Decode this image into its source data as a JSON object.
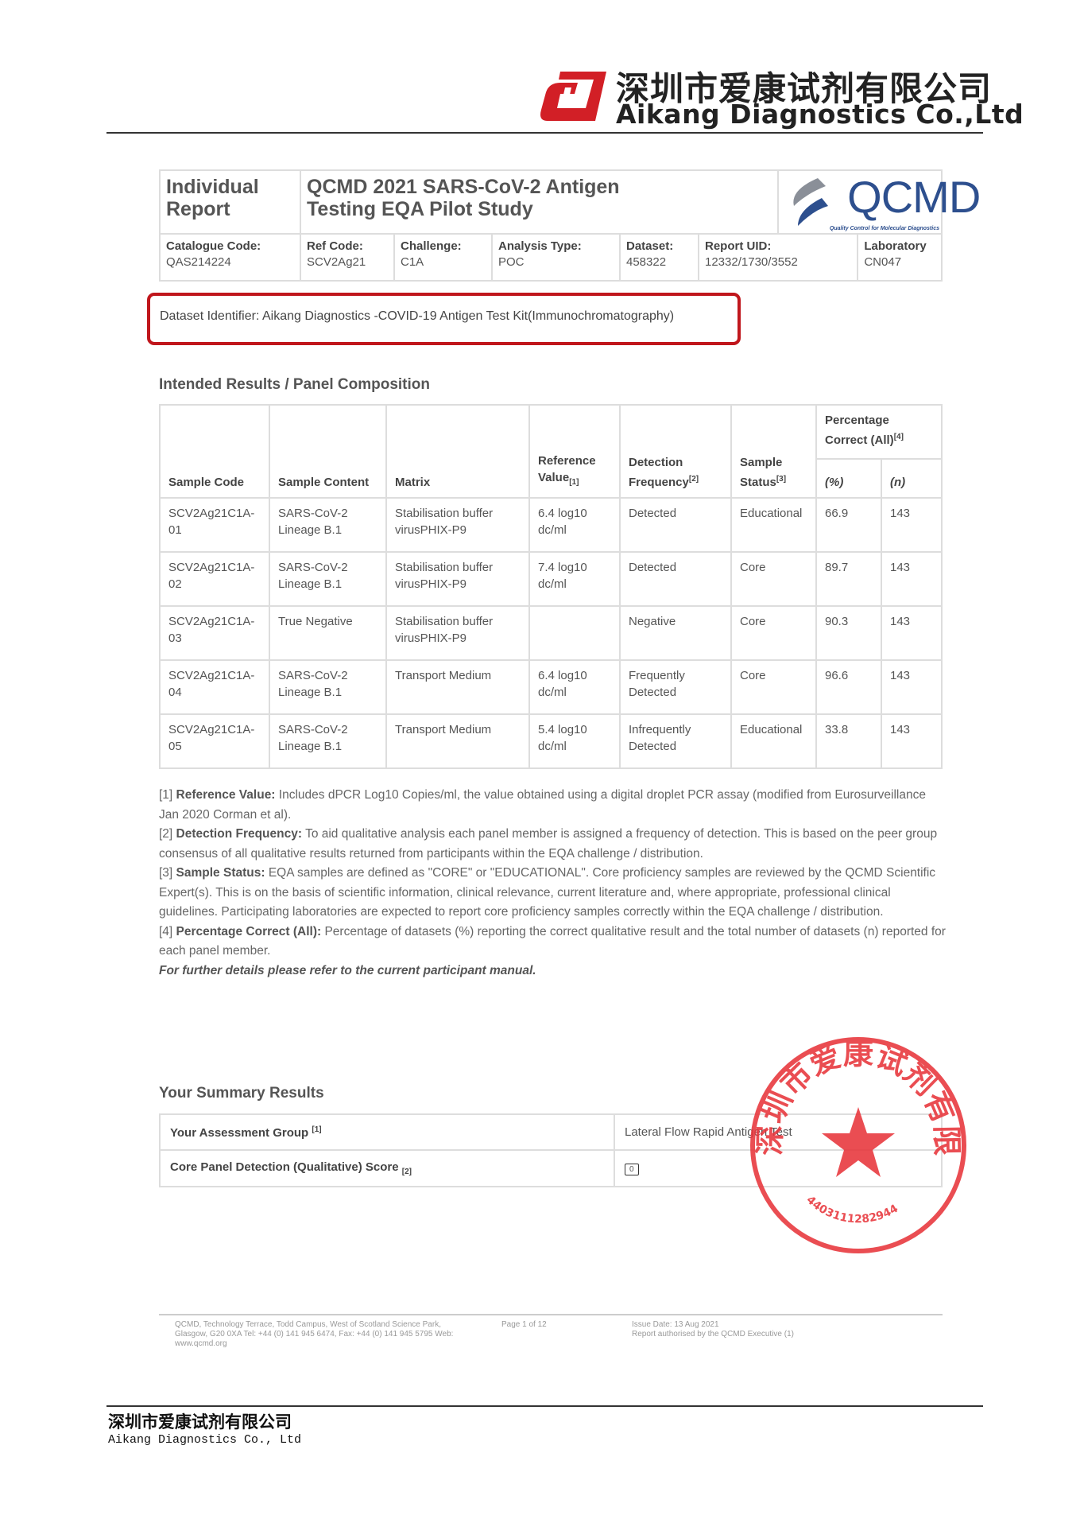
{
  "letterhead": {
    "company_cn": "深圳市爱康试剂有限公司",
    "company_en": "Aikang Diagnostics Co.,Ltd"
  },
  "report_header": {
    "doc_type": "Individual Report",
    "title": "QCMD 2021 SARS-CoV-2 Antigen Testing EQA Pilot Study",
    "logo_text": "QCMD",
    "logo_tagline": "Quality Control for Molecular Diagnostics",
    "fields": [
      {
        "label": "Catalogue Code:",
        "value": "QAS214224"
      },
      {
        "label": "Ref Code:",
        "value": "SCV2Ag21"
      },
      {
        "label": "Challenge:",
        "value": "C1A"
      },
      {
        "label": "Analysis Type:",
        "value": "POC"
      },
      {
        "label": "Dataset:",
        "value": "458322"
      },
      {
        "label": "Report UID:",
        "value": "12332/1730/3552"
      },
      {
        "label": "Laboratory",
        "value": "CN047"
      }
    ]
  },
  "dataset_identifier": "Dataset Identifier: Aikang Diagnostics -COVID-19 Antigen Test Kit(Immunochromatography)",
  "panel": {
    "heading": "Intended Results / Panel Composition",
    "headers": {
      "sample_code": "Sample Code",
      "sample_content": "Sample Content",
      "matrix": "Matrix",
      "reference_value": "Reference Value",
      "ref_sub": "[1]",
      "detection_frequency": "Detection Frequency",
      "det_sup": "[2]",
      "sample_status": "Sample Status",
      "status_sup": "[3]",
      "pct_correct": "Percentage Correct (All)",
      "pct_sup": "[4]",
      "pct": "(%)",
      "n": "(n)"
    },
    "rows": [
      {
        "code": "SCV2Ag21C1A-01",
        "content": "SARS-CoV-2 Lineage B.1",
        "matrix": "Stabilisation buffer virusPHIX-P9",
        "ref": "6.4 log10 dc/ml",
        "freq": "Detected",
        "status": "Educational",
        "pct": "66.9",
        "n": "143"
      },
      {
        "code": "SCV2Ag21C1A-02",
        "content": "SARS-CoV-2 Lineage B.1",
        "matrix": "Stabilisation buffer virusPHIX-P9",
        "ref": "7.4 log10 dc/ml",
        "freq": "Detected",
        "status": "Core",
        "pct": "89.7",
        "n": "143"
      },
      {
        "code": "SCV2Ag21C1A-03",
        "content": "True Negative",
        "matrix": "Stabilisation buffer virusPHIX-P9",
        "ref": "",
        "freq": "Negative",
        "status": "Core",
        "pct": "90.3",
        "n": "143"
      },
      {
        "code": "SCV2Ag21C1A-04",
        "content": "SARS-CoV-2 Lineage B.1",
        "matrix": "Transport Medium",
        "ref": "6.4 log10 dc/ml",
        "freq": "Frequently Detected",
        "status": "Core",
        "pct": "96.6",
        "n": "143"
      },
      {
        "code": "SCV2Ag21C1A-05",
        "content": "SARS-CoV-2 Lineage B.1",
        "matrix": "Transport Medium",
        "ref": "5.4 log10 dc/ml",
        "freq": "Infrequently Detected",
        "status": "Educational",
        "pct": "33.8",
        "n": "143"
      }
    ]
  },
  "notes": [
    {
      "num": "[1]",
      "term": "Reference Value:",
      "text": "Includes dPCR Log10 Copies/ml, the value obtained using a digital droplet PCR assay (modified from Eurosurveillance Jan 2020 Corman et al)."
    },
    {
      "num": "[2]",
      "term": "Detection Frequency:",
      "text": "To aid qualitative analysis each panel member is assigned a frequency of detection. This is based on the peer group consensus of all qualitative results returned from participants within the EQA challenge / distribution."
    },
    {
      "num": "[3]",
      "term": "Sample Status:",
      "text": "EQA samples are defined as \"CORE\" or \"EDUCATIONAL\". Core proficiency samples are reviewed by the QCMD Scientific Expert(s). This is on the basis of scientific information, clinical relevance, current literature and, where appropriate, professional clinical guidelines. Participating laboratories are expected to report core proficiency samples correctly within the EQA challenge / distribution."
    },
    {
      "num": "[4]",
      "term": "Percentage Correct (All):",
      "text": "Percentage of datasets (%) reporting the correct qualitative result and the total number of datasets (n) reported for each panel member."
    }
  ],
  "notes_footer": "For further details please refer to the current participant manual.",
  "summary": {
    "heading": "Your Summary Results",
    "rows": [
      {
        "label": "Your Assessment Group",
        "sup": "[1]",
        "value": "Lateral Flow Rapid Antigen Test"
      },
      {
        "label": "Core Panel Detection (Qualitative) Score",
        "sup": "[2]",
        "value": "0"
      }
    ]
  },
  "stamp": {
    "text": "深圳市爱康试剂有限公司",
    "number": "4403111282944",
    "color": "#e8353b"
  },
  "page_footer": {
    "address": "QCMD, Technology Terrace, Todd Campus, West of Scotland Science Park, Glasgow, G20 0XA Tel: +44 (0) 141 945 6474, Fax: +44 (0) 141 945 5795 Web: www.qcmd.org",
    "page": "Page 1 of 12",
    "issue_date": "Issue Date: 13 Aug 2021",
    "authorised": "Report authorised by the QCMD Executive (1)"
  },
  "bottom": {
    "company_cn": "深圳市爱康试剂有限公司",
    "company_en": "Aikang Diagnostics Co., Ltd"
  }
}
